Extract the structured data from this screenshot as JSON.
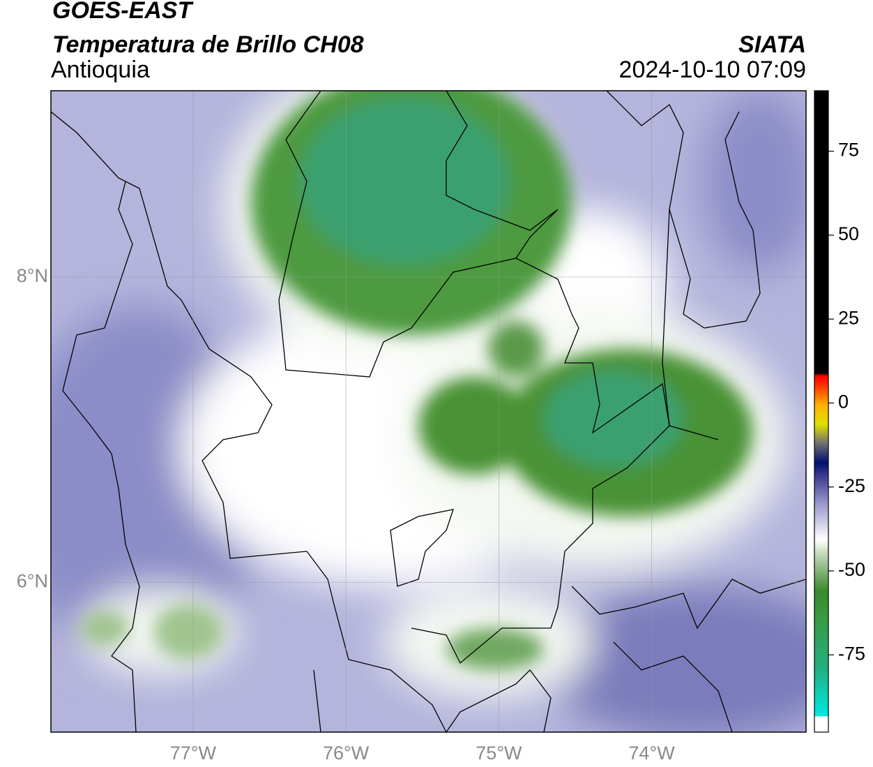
{
  "title": "GOES-EAST",
  "subtitle": "Temperatura de Brillo CH08",
  "region": "Antioquia",
  "source": "SIATA",
  "timestamp": "2024-10-10 07:09",
  "map": {
    "lonlim": [
      -77.93,
      -72.99
    ],
    "latlim": [
      5.02,
      9.22
    ],
    "lon_ticks": [
      {
        "value": -77,
        "label": "77°W"
      },
      {
        "value": -76,
        "label": "76°W"
      },
      {
        "value": -75,
        "label": "75°W"
      },
      {
        "value": -74,
        "label": "74°W"
      }
    ],
    "lat_ticks": [
      {
        "value": 8,
        "label": "8°N"
      },
      {
        "value": 6,
        "label": "6°N"
      }
    ],
    "grid": true
  },
  "colorbar": {
    "lim": [
      -98,
      93
    ],
    "ticks": [
      75,
      50,
      25,
      0,
      -25,
      -50,
      -75
    ]
  }
}
